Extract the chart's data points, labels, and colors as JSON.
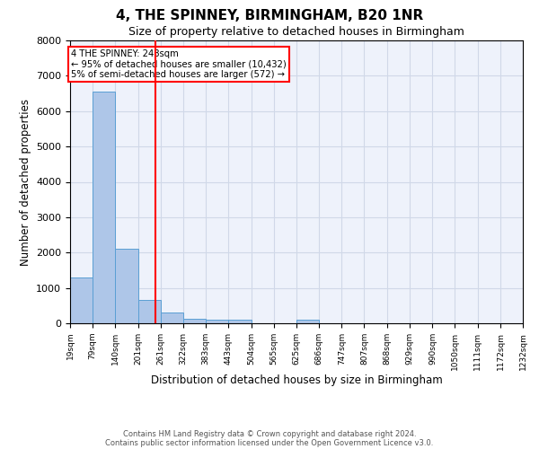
{
  "title": "4, THE SPINNEY, BIRMINGHAM, B20 1NR",
  "subtitle": "Size of property relative to detached houses in Birmingham",
  "xlabel": "Distribution of detached houses by size in Birmingham",
  "ylabel": "Number of detached properties",
  "annotation_line1": "4 THE SPINNEY: 248sqm",
  "annotation_line2": "← 95% of detached houses are smaller (10,432)",
  "annotation_line3": "5% of semi-detached houses are larger (572) →",
  "property_size": 248,
  "bar_edges": [
    19,
    79,
    140,
    201,
    261,
    322,
    383,
    443,
    504,
    565,
    625,
    686,
    747,
    807,
    868,
    929,
    990,
    1050,
    1111,
    1172,
    1232
  ],
  "bar_heights": [
    1300,
    6550,
    2100,
    650,
    300,
    130,
    100,
    90,
    0,
    0,
    100,
    0,
    0,
    0,
    0,
    0,
    0,
    0,
    0,
    0
  ],
  "bar_color": "#aec6e8",
  "bar_edge_color": "#5a9fd4",
  "red_line_x": 248,
  "ylim": [
    0,
    8000
  ],
  "yticks": [
    0,
    1000,
    2000,
    3000,
    4000,
    5000,
    6000,
    7000,
    8000
  ],
  "grid_color": "#d0d8e8",
  "footer_line1": "Contains HM Land Registry data © Crown copyright and database right 2024.",
  "footer_line2": "Contains public sector information licensed under the Open Government Licence v3.0."
}
